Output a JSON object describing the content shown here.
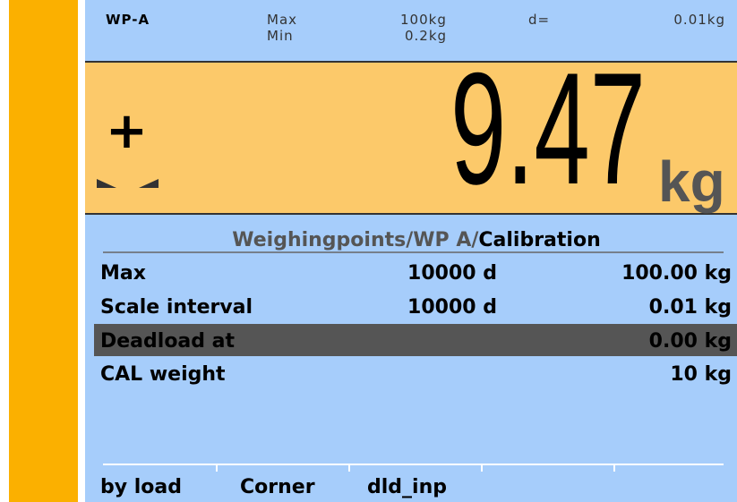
{
  "header": {
    "name": "WP-A",
    "max_label": "Max",
    "max_value": "100kg",
    "min_label": "Min",
    "min_value": "0.2kg",
    "d_label": "d=",
    "d_value": "0.01kg"
  },
  "weight": {
    "sign": "+",
    "value": "9.47",
    "unit": "kg"
  },
  "breadcrumb": {
    "path": "Weighingpoints/WP A/",
    "current": "Calibration"
  },
  "rows": [
    {
      "label": "Max",
      "count": "10000 d",
      "value": "100.00 kg"
    },
    {
      "label": "Scale interval",
      "count": "10000 d",
      "value": "0.01 kg"
    },
    {
      "label": "Deadload at",
      "value": "0.00 kg"
    },
    {
      "label": "CAL weight",
      "value": "10 kg"
    }
  ],
  "selected_row": 2,
  "softkeys": [
    "by load",
    "Corner",
    "dld_inp"
  ]
}
